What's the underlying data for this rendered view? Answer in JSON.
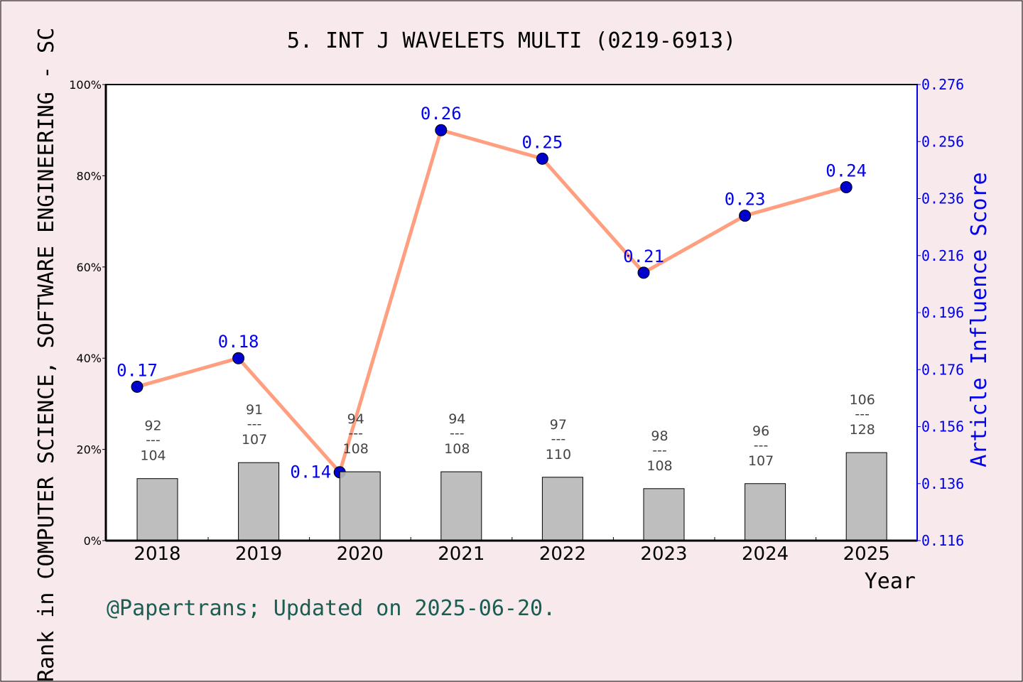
{
  "chart_data": {
    "type": "bar+line",
    "title": "5. INT J WAVELETS MULTI (0219-6913)",
    "xlabel": "Year",
    "ylabel_left": "Rank in COMPUTER SCIENCE, SOFTWARE ENGINEERING - SC",
    "ylabel_right": "Article Influence Score",
    "categories": [
      "2018",
      "2019",
      "2020",
      "2021",
      "2022",
      "2023",
      "2024",
      "2025"
    ],
    "left_axis": {
      "ylim": [
        0,
        100
      ],
      "ticks": [
        "0%",
        "20%",
        "40%",
        "60%",
        "80%",
        "100%"
      ]
    },
    "right_axis": {
      "ylim": [
        0.116,
        0.276
      ],
      "ticks": [
        "0.116",
        "0.136",
        "0.156",
        "0.176",
        "0.196",
        "0.216",
        "0.236",
        "0.256",
        "0.276"
      ]
    },
    "bars": {
      "values_percent": [
        13.6,
        17.1,
        15.1,
        15.1,
        13.9,
        11.4,
        12.5,
        19.3
      ],
      "rank": [
        "92",
        "91",
        "94",
        "94",
        "97",
        "98",
        "96",
        "106"
      ],
      "total": [
        "104",
        "107",
        "108",
        "108",
        "110",
        "108",
        "107",
        "128"
      ],
      "separator": "---",
      "color": "#b8b8ba"
    },
    "line": {
      "values": [
        0.17,
        0.18,
        0.14,
        0.26,
        0.25,
        0.21,
        0.23,
        0.24
      ],
      "labels": [
        "0.17",
        "0.18",
        "0.14",
        "0.26",
        "0.25",
        "0.21",
        "0.23",
        "0.24"
      ],
      "line_color": "#ff9f7f",
      "marker_color": "#0000cc"
    },
    "grid": false,
    "footer": "@Papertrans; Updated on 2025-06-20."
  }
}
